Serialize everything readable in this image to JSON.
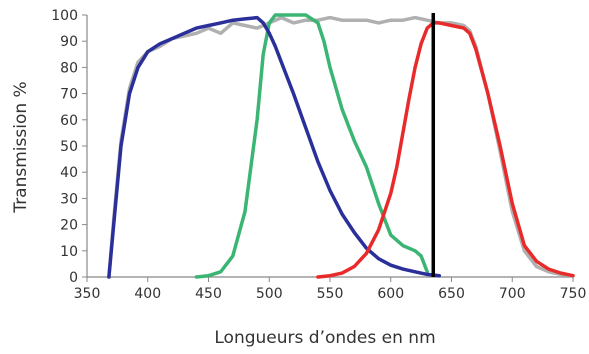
{
  "chart_data": {
    "type": "line",
    "title": "",
    "xlabel": "Longueurs d’ondes en nm",
    "ylabel": "Transmission %",
    "xlim": [
      350,
      750
    ],
    "ylim": [
      0,
      100
    ],
    "xticks": [
      350,
      400,
      450,
      500,
      550,
      600,
      650,
      700,
      750
    ],
    "yticks": [
      0,
      10,
      20,
      30,
      40,
      50,
      60,
      70,
      80,
      90,
      100
    ],
    "grid": false,
    "legend": "none",
    "series": [
      {
        "color": "#2a2f9a",
        "x": [
          368,
          372,
          378,
          385,
          392,
          400,
          410,
          420,
          430,
          440,
          450,
          460,
          470,
          480,
          490,
          495,
          500,
          505,
          510,
          520,
          530,
          540,
          550,
          560,
          570,
          580,
          590,
          600,
          610,
          620,
          630,
          640
        ],
        "y": [
          0,
          20,
          50,
          70,
          80,
          86,
          89,
          91,
          93,
          95,
          96,
          97,
          98,
          98.5,
          99,
          97,
          93,
          88,
          82,
          70,
          57,
          44,
          33,
          24,
          17,
          11,
          7,
          4.5,
          3,
          2,
          1,
          0.5
        ]
      },
      {
        "color": "#3bb574",
        "x": [
          440,
          450,
          460,
          470,
          480,
          490,
          495,
          500,
          505,
          510,
          520,
          530,
          540,
          545,
          550,
          560,
          570,
          580,
          590,
          600,
          610,
          620,
          625,
          630
        ],
        "y": [
          0,
          0.5,
          2,
          8,
          25,
          60,
          85,
          97,
          100,
          100,
          100,
          100,
          97,
          90,
          80,
          64,
          52,
          42,
          28,
          16,
          12,
          10,
          8,
          2
        ]
      },
      {
        "color": "#e82a2a",
        "x": [
          540,
          550,
          560,
          570,
          580,
          590,
          600,
          605,
          610,
          615,
          620,
          625,
          630,
          635,
          640,
          650,
          660,
          665,
          670,
          680,
          690,
          700,
          710,
          720,
          730,
          740,
          750
        ],
        "y": [
          0,
          0.5,
          1.5,
          4,
          9,
          18,
          32,
          42,
          55,
          68,
          80,
          89,
          95,
          97,
          97,
          96,
          95,
          93,
          87,
          70,
          50,
          28,
          12,
          6,
          3,
          1.5,
          0.5
        ]
      },
      {
        "color": "#b0b0b0",
        "x": [
          368,
          372,
          378,
          385,
          392,
          400,
          410,
          420,
          430,
          440,
          450,
          460,
          470,
          480,
          490,
          500,
          510,
          520,
          530,
          540,
          550,
          560,
          570,
          580,
          590,
          600,
          610,
          620,
          630,
          640,
          650,
          660,
          665,
          670,
          680,
          690,
          700,
          710,
          720,
          730,
          740,
          750
        ],
        "y": [
          0,
          22,
          52,
          72,
          82,
          86,
          88,
          91,
          92,
          93,
          95,
          93,
          97,
          96,
          95,
          97,
          99,
          97,
          98,
          98,
          99,
          98,
          98,
          98,
          97,
          98,
          98,
          99,
          98,
          97,
          97,
          96,
          94,
          88,
          70,
          48,
          25,
          10,
          4,
          2,
          1,
          0.5
        ]
      }
    ],
    "annotations": [
      {
        "type": "vertical-line",
        "x": 635,
        "y_range": [
          0,
          100
        ],
        "color": "#000000"
      }
    ]
  }
}
